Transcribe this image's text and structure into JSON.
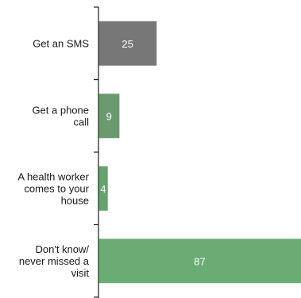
{
  "chart_data": {
    "type": "bar",
    "orientation": "horizontal",
    "categories": [
      [
        "Get an SMS"
      ],
      [
        "Get a phone",
        "call"
      ],
      [
        "A health worker",
        "comes to your",
        "house"
      ],
      [
        "Don't know/",
        "never missed a",
        "visit"
      ]
    ],
    "values": [
      25,
      9,
      4,
      87
    ],
    "bar_colors": [
      "#777777",
      "#6a9a6e",
      "#66a26e",
      "#6aac74"
    ],
    "xlim": [
      0,
      87
    ],
    "title": "",
    "xlabel": "",
    "ylabel": "",
    "grid": false,
    "legend": "none"
  }
}
